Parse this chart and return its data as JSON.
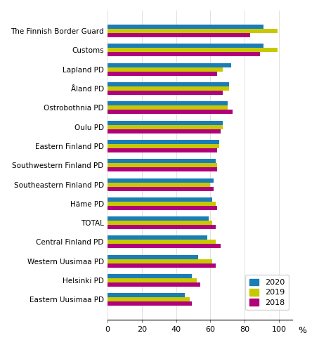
{
  "categories": [
    "Eastern Uusimaa PD",
    "Helsinki PD",
    "Western Uusimaa PD",
    "Central Finland PD",
    "TOTAL",
    "Häme PD",
    "Southeastern Finland PD",
    "Southwestern Finland PD",
    "Eastern Finland PD",
    "Oulu PD",
    "Ostrobothnia PD",
    "Åland PD",
    "Lapland PD",
    "Customs",
    "The Finnish Border Guard"
  ],
  "values_2020": [
    45,
    49,
    53,
    58,
    59,
    61,
    62,
    63,
    65,
    67,
    70,
    71,
    72,
    91,
    91
  ],
  "values_2019": [
    48,
    52,
    61,
    63,
    61,
    63,
    60,
    64,
    65,
    67,
    70,
    71,
    67,
    99,
    99
  ],
  "values_2018": [
    49,
    54,
    63,
    66,
    63,
    64,
    62,
    64,
    64,
    66,
    73,
    67,
    64,
    89,
    83
  ],
  "color_2020": "#1a7db5",
  "color_2019": "#c8c800",
  "color_2018": "#b0007a",
  "xlim": [
    0,
    108
  ],
  "xticks": [
    0,
    20,
    40,
    60,
    80,
    100
  ],
  "xlabel_suffix": "%",
  "bar_height": 0.22,
  "legend_labels": [
    "2020",
    "2019",
    "2018"
  ],
  "figsize": [
    4.54,
    4.91
  ],
  "dpi": 100
}
